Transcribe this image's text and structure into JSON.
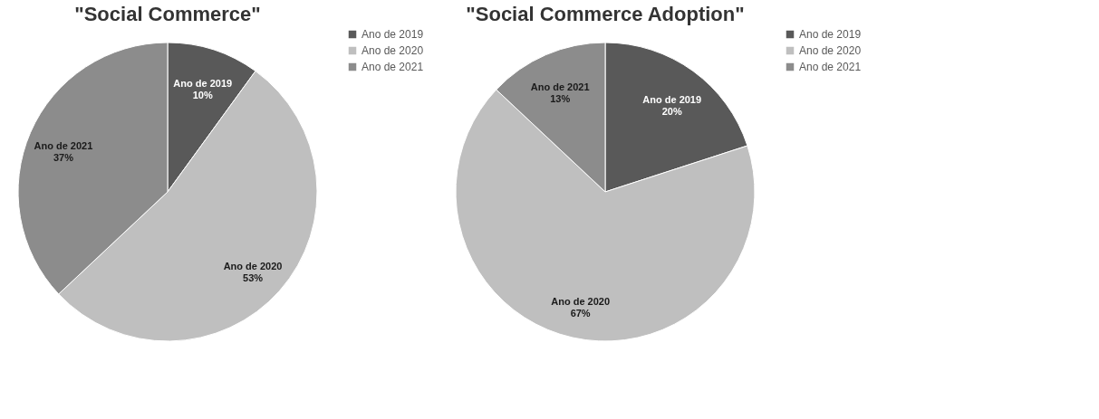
{
  "chart_data": [
    {
      "type": "pie",
      "title": "\"Social Commerce\"",
      "categories": [
        "Ano de 2019",
        "Ano de 2020",
        "Ano de 2021"
      ],
      "values": [
        10,
        53,
        37
      ],
      "colors": [
        "#595959",
        "#bfbfbf",
        "#8c8c8c"
      ],
      "value_labels": [
        "10%",
        "53%",
        "37%"
      ],
      "legend": "right"
    },
    {
      "type": "pie",
      "title": "\"Social Commerce Adoption\"",
      "categories": [
        "Ano de 2019",
        "Ano de 2020",
        "Ano de 2021"
      ],
      "values": [
        20,
        67,
        13
      ],
      "colors": [
        "#595959",
        "#bfbfbf",
        "#8c8c8c"
      ],
      "value_labels": [
        "20%",
        "67%",
        "13%"
      ],
      "legend": "right"
    }
  ]
}
